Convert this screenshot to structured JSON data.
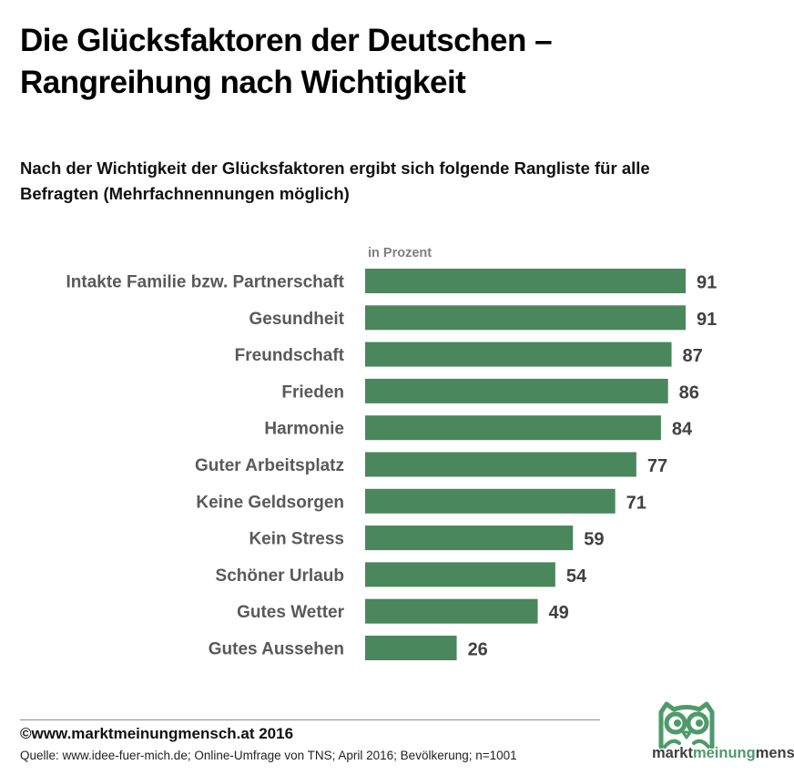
{
  "header": {
    "title_line1": "Die Glücksfaktoren der Deutschen –",
    "title_line2": "Rangreihung nach Wichtigkeit",
    "subtitle_line1": "Nach der Wichtigkeit der Glücksfaktoren ergibt sich folgende Rangliste für alle",
    "subtitle_line2": "Befragten (Mehrfachnennungen möglich)"
  },
  "chart_data": {
    "type": "bar",
    "orientation": "horizontal",
    "unit_label": "in Prozent",
    "categories": [
      "Intakte Familie bzw. Partnerschaft",
      "Gesundheit",
      "Freundschaft",
      "Frieden",
      "Harmonie",
      "Guter Arbeitsplatz",
      "Keine Geldsorgen",
      "Kein Stress",
      "Schöner Urlaub",
      "Gutes Wetter",
      "Gutes Aussehen"
    ],
    "values": [
      91,
      91,
      87,
      86,
      84,
      77,
      71,
      59,
      54,
      49,
      26
    ],
    "xlim": [
      0,
      100
    ],
    "grid": false,
    "bar_color": "#4a875c"
  },
  "footer": {
    "copyright": "©www.marktmeinungmensch.at 2016",
    "source": "Quelle: www.idee-fuer-mich.de; Online-Umfrage von TNS; April 2016; Bevölkerung; n=1001"
  },
  "logo": {
    "icon": "owl-icon",
    "text_a": "markt",
    "text_b": "meinung",
    "text_c": "mensch",
    "color": "#4e9a6a"
  }
}
